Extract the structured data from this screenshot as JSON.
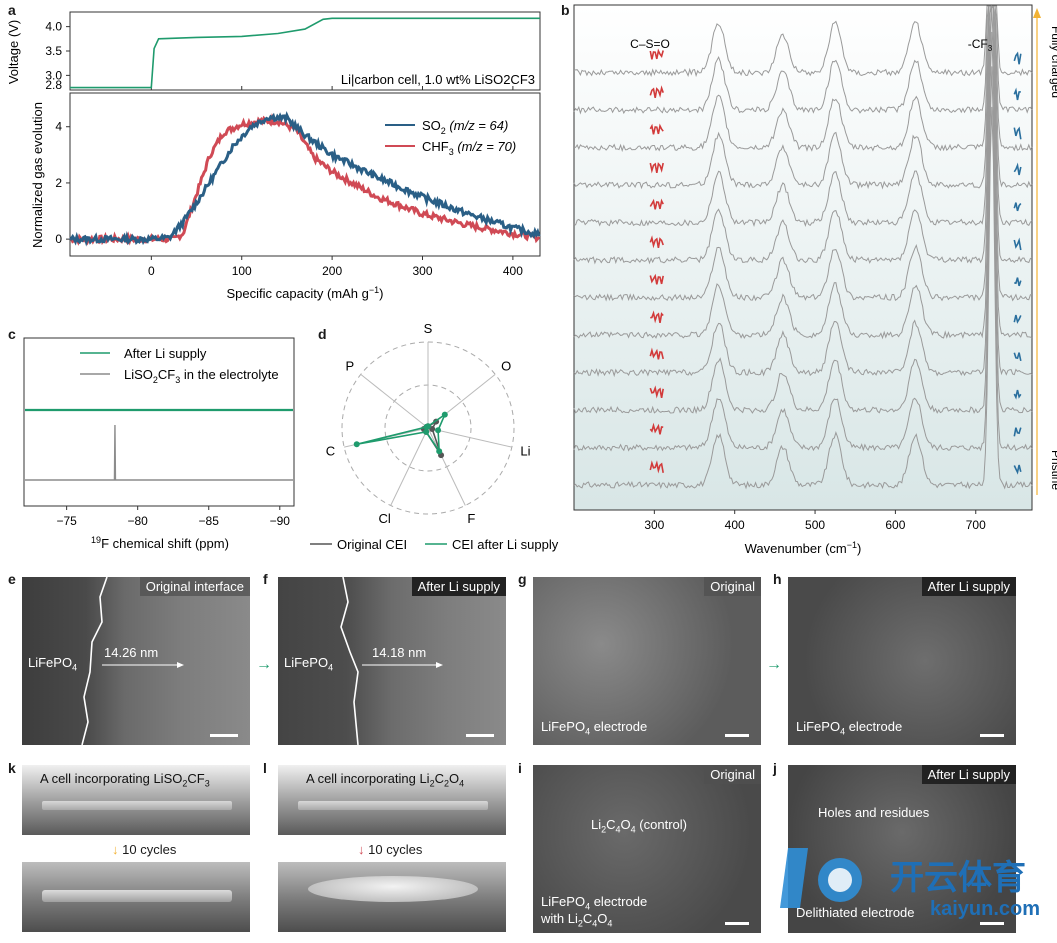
{
  "panels": {
    "a": "a",
    "b": "b",
    "c": "c",
    "d": "d",
    "e": "e",
    "f": "f",
    "g": "g",
    "h": "h",
    "i": "i",
    "j": "j",
    "k": "k",
    "l": "l"
  },
  "colors": {
    "so2": "#2a5f86",
    "chf3": "#d04a55",
    "green": "#1f9b6d",
    "gray": "#8c8c8c",
    "red_mark": "#d23a3a",
    "blue_mark": "#2a6f9e"
  },
  "chart_data": [
    {
      "id": "a_top",
      "type": "line",
      "ylabel": "Voltage (V)",
      "yticks": [
        "2.8",
        "3.0",
        "3.5",
        "4.0"
      ],
      "ylim": [
        2.7,
        4.3
      ],
      "annotation": "Li|carbon cell, 1.0 wt% LiSO2CF3",
      "x": [
        -90,
        0,
        3,
        8,
        50,
        100,
        140,
        170,
        190,
        200,
        430
      ],
      "y": [
        2.75,
        2.75,
        3.55,
        3.75,
        3.78,
        3.8,
        3.86,
        3.95,
        4.15,
        4.17,
        4.17
      ]
    },
    {
      "id": "a_bottom",
      "type": "line",
      "xlabel": "Specific capacity (mAh g",
      "xlabel_sup": "−1",
      "xlabel_end": ")",
      "ylabel": "Normalized gas evolution",
      "xticks": [
        "0",
        "100",
        "200",
        "300",
        "400"
      ],
      "yticks": [
        "0",
        "2",
        "4"
      ],
      "xlim": [
        -90,
        430
      ],
      "ylim": [
        -0.6,
        5.2
      ],
      "series": [
        {
          "name": "SO2 (m/z = 64)",
          "label_main": "SO",
          "label_sub": "2",
          "label_rest": " (m/z = 64)",
          "x": [
            -90,
            0,
            20,
            35,
            50,
            70,
            90,
            110,
            130,
            150,
            170,
            200,
            250,
            300,
            350,
            400,
            430
          ],
          "y": [
            0,
            0,
            0.05,
            0.6,
            1.3,
            2.3,
            3.3,
            4.0,
            4.35,
            4.3,
            3.7,
            3.0,
            2.2,
            1.5,
            0.9,
            0.4,
            0.15
          ]
        },
        {
          "name": "CHF3 (m/z = 70)",
          "label_main": "CHF",
          "label_sub": "3",
          "label_rest": " (m/z = 70)",
          "x": [
            -90,
            0,
            25,
            35,
            50,
            65,
            80,
            100,
            120,
            140,
            160,
            180,
            200,
            250,
            300,
            350,
            400,
            430
          ],
          "y": [
            0,
            0,
            0,
            0.2,
            1.6,
            3.0,
            3.8,
            4.1,
            4.2,
            4.2,
            3.9,
            2.9,
            2.4,
            1.5,
            0.9,
            0.5,
            0.2,
            0.05
          ]
        }
      ]
    },
    {
      "id": "b",
      "type": "line",
      "xlabel": "Wavenumber (cm",
      "xlabel_sup": "−1",
      "xlabel_end": ")",
      "xticks": [
        "300",
        "400",
        "500",
        "600",
        "700"
      ],
      "xlim": [
        200,
        770
      ],
      "peaks_cm": [
        380,
        460,
        525,
        625,
        720
      ],
      "n_spectra": 12,
      "label_cso": "C–S=O",
      "label_cf3": "-CF",
      "label_cf3_sub": "3",
      "arrow_top": "Fully charged",
      "arrow_bottom": "Pristine"
    },
    {
      "id": "c",
      "type": "line",
      "xlabel_pre": "19",
      "xlabel": "F chemical shift (ppm)",
      "xticks": [
        "−75",
        "−80",
        "−85",
        "−90"
      ],
      "xlim": [
        -72,
        -91
      ],
      "peak_ppm": -78.4,
      "series": [
        {
          "name": "After Li supply"
        },
        {
          "name": "LiSO2CF3 in the electrolyte",
          "label_a": "LiSO",
          "label_a_sub": "2",
          "label_b": "CF",
          "label_b_sub": "3",
          "label_c": " in the electrolyte"
        }
      ]
    },
    {
      "id": "d",
      "type": "radar",
      "axes": [
        "S",
        "O",
        "Li",
        "F",
        "Cl",
        "C",
        "P"
      ],
      "series": [
        {
          "name": "Original CEI",
          "values": [
            0.02,
            0.12,
            0.05,
            0.35,
            0.05,
            0.05,
            0.02
          ]
        },
        {
          "name": "CEI after Li supply",
          "values": [
            0.02,
            0.25,
            0.12,
            0.3,
            0.05,
            0.85,
            0.02
          ]
        }
      ]
    }
  ],
  "micro": {
    "e": {
      "tag": "Original interface",
      "material": "LiFePO",
      "material_sub": "4",
      "thickness": "14.26 nm"
    },
    "f": {
      "tag": "After Li supply",
      "material": "LiFePO",
      "material_sub": "4",
      "thickness": "14.18 nm"
    },
    "g": {
      "tag": "Original",
      "caption_a": "LiFePO",
      "caption_sub": "4",
      "caption_b": " electrode"
    },
    "h": {
      "tag": "After Li supply",
      "caption_a": "LiFePO",
      "caption_sub": "4",
      "caption_b": " electrode"
    },
    "i": {
      "tag": "Original",
      "label_a": "Li",
      "label_sub1": "2",
      "label_b": "C",
      "label_sub2": "4",
      "label_c": "O",
      "label_sub3": "4",
      "label_d": " (control)",
      "caption1_a": "LiFePO",
      "caption1_sub": "4",
      "caption1_b": " electrode",
      "caption2_a": "with Li",
      "caption2_sub1": "2",
      "caption2_b": "C",
      "caption2_sub2": "4",
      "caption2_c": "O",
      "caption2_sub3": "4"
    },
    "j": {
      "tag": "After Li supply",
      "label": "Holes and residues",
      "caption": "Delithiated electrode"
    }
  },
  "cells": {
    "k": {
      "caption_a": "A cell incorporating LiSO",
      "caption_sub1": "2",
      "caption_b": "CF",
      "caption_sub2": "3",
      "cycles": "10 cycles"
    },
    "l": {
      "caption_a": "A cell incorporating Li",
      "caption_sub1": "2",
      "caption_b": "C",
      "caption_sub2": "2",
      "caption_c": "O",
      "caption_sub3": "4",
      "cycles": "10 cycles"
    }
  },
  "watermark": {
    "brand": "开云体育",
    "url": "kaiyun.com"
  }
}
